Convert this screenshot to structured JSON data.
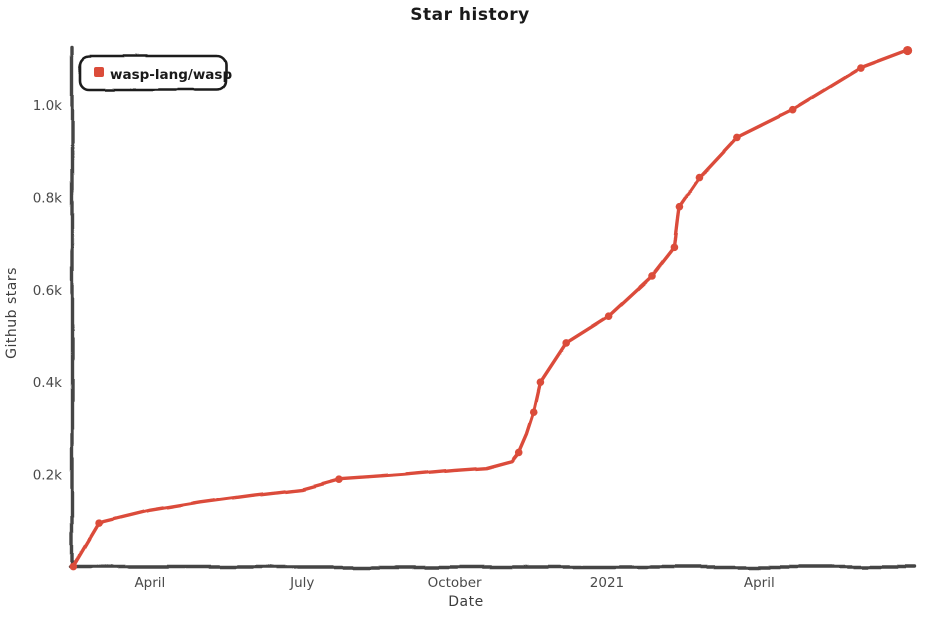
{
  "window": {
    "title": "Star history"
  },
  "colors": {
    "series": "#db4c3a",
    "axis": "#454545",
    "text": "#1a1a1a",
    "tick_text": "#4a4a4a",
    "background": "#ffffff"
  },
  "legend": {
    "label": "wasp-lang/wasp",
    "marker_color": "#db4c3a"
  },
  "chart_data": {
    "type": "line",
    "title": "Star history",
    "xlabel": "Date",
    "ylabel": "Github stars",
    "grid": false,
    "legend_position": "top-left",
    "ylim": [
      0,
      1130
    ],
    "xlim": [
      "2020-02-14",
      "2021-07-03"
    ],
    "x_ticks": [
      {
        "date": "2020-04-01",
        "label": "April"
      },
      {
        "date": "2020-07-01",
        "label": "July"
      },
      {
        "date": "2020-10-01",
        "label": "October"
      },
      {
        "date": "2021-01-01",
        "label": "2021"
      },
      {
        "date": "2021-04-01",
        "label": "April"
      }
    ],
    "y_ticks": [
      {
        "value": 200,
        "label": "0.2k"
      },
      {
        "value": 400,
        "label": "0.4k"
      },
      {
        "value": 600,
        "label": "0.6k"
      },
      {
        "value": 800,
        "label": "0.8k"
      },
      {
        "value": 1000,
        "label": "1.0k"
      }
    ],
    "series": [
      {
        "name": "wasp-lang/wasp",
        "color": "#db4c3a",
        "points": [
          {
            "date": "2020-02-16",
            "stars": 1,
            "dot": true
          },
          {
            "date": "2020-03-01",
            "stars": 95,
            "dot": true
          },
          {
            "date": "2020-04-01",
            "stars": 122,
            "dot": false
          },
          {
            "date": "2020-05-01",
            "stars": 140,
            "dot": false
          },
          {
            "date": "2020-06-01",
            "stars": 155,
            "dot": false
          },
          {
            "date": "2020-07-01",
            "stars": 168,
            "dot": false
          },
          {
            "date": "2020-07-23",
            "stars": 190,
            "dot": true
          },
          {
            "date": "2020-09-01",
            "stars": 200,
            "dot": false
          },
          {
            "date": "2020-10-01",
            "stars": 210,
            "dot": false
          },
          {
            "date": "2020-10-20",
            "stars": 215,
            "dot": false
          },
          {
            "date": "2020-11-05",
            "stars": 230,
            "dot": false
          },
          {
            "date": "2020-11-09",
            "stars": 248,
            "dot": true
          },
          {
            "date": "2020-11-14",
            "stars": 290,
            "dot": false
          },
          {
            "date": "2020-11-18",
            "stars": 335,
            "dot": true
          },
          {
            "date": "2020-11-22",
            "stars": 400,
            "dot": true
          },
          {
            "date": "2020-12-07",
            "stars": 485,
            "dot": true
          },
          {
            "date": "2021-01-02",
            "stars": 543,
            "dot": true
          },
          {
            "date": "2021-01-28",
            "stars": 630,
            "dot": true
          },
          {
            "date": "2021-02-11",
            "stars": 692,
            "dot": true
          },
          {
            "date": "2021-02-14",
            "stars": 780,
            "dot": true
          },
          {
            "date": "2021-02-26",
            "stars": 843,
            "dot": true
          },
          {
            "date": "2021-03-18",
            "stars": 930,
            "dot": true
          },
          {
            "date": "2021-04-21",
            "stars": 990,
            "dot": true
          },
          {
            "date": "2021-06-01",
            "stars": 1080,
            "dot": true
          },
          {
            "date": "2021-06-29",
            "stars": 1118,
            "dot": true
          }
        ]
      }
    ]
  }
}
